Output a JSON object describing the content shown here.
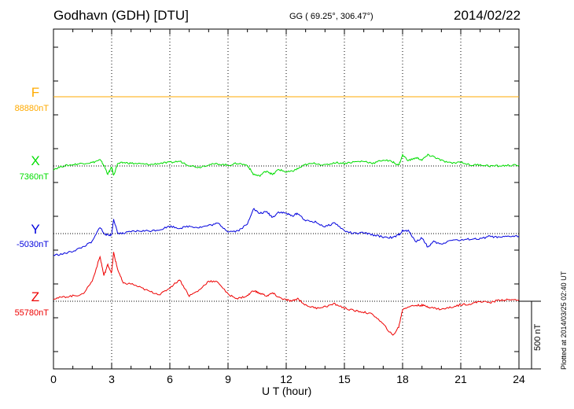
{
  "header": {
    "title": "Godhavn (GDH)  [DTU]",
    "coordinates": "GG ( 69.25°, 306.47°)",
    "date": "2014/02/22"
  },
  "footer": {
    "plotted": "Plotted at 2014/03/25 02:40 UT"
  },
  "chart_data": {
    "type": "line",
    "title": "Godhavn (GDH)  [DTU]",
    "xlabel": "U T (hour)",
    "xlim": [
      0,
      24
    ],
    "xticks": [
      0,
      3,
      6,
      9,
      12,
      15,
      18,
      21,
      24
    ],
    "x_tick_labels": [
      "0",
      "3",
      "6",
      "9",
      "12",
      "15",
      "18",
      "21",
      "24"
    ],
    "scale_bar": {
      "label": "500 nT",
      "value": 500
    },
    "grid": "dotted vertical every 3 hours",
    "series": [
      {
        "name": "F",
        "baseline_label": "88880nT",
        "baseline": 88880,
        "color": "#ffaa00",
        "x": [
          0,
          24
        ],
        "values": [
          0,
          0
        ]
      },
      {
        "name": "X",
        "baseline_label": "7360nT",
        "baseline": 7360,
        "color": "#00dd00",
        "x": [
          0,
          0.5,
          1,
          1.5,
          2,
          2.4,
          2.6,
          2.8,
          3.0,
          3.1,
          3.3,
          3.6,
          4,
          4.5,
          5,
          5.5,
          6,
          6.5,
          7,
          7.5,
          8,
          8.5,
          9,
          9.5,
          10,
          10.3,
          10.6,
          11,
          11.3,
          11.6,
          12,
          12.3,
          12.6,
          13,
          13.5,
          14,
          14.5,
          15,
          15.5,
          16,
          16.5,
          17,
          17.5,
          17.8,
          18,
          18.3,
          18.7,
          19,
          19.3,
          19.6,
          20,
          20.5,
          21,
          21.5,
          22,
          22.5,
          23,
          23.5,
          24
        ],
        "values": [
          -25,
          0,
          10,
          20,
          25,
          45,
          5,
          -60,
          -10,
          -70,
          15,
          25,
          20,
          15,
          10,
          20,
          25,
          35,
          5,
          -10,
          10,
          15,
          5,
          20,
          5,
          -60,
          -75,
          -35,
          -65,
          -25,
          -45,
          -40,
          -20,
          10,
          20,
          5,
          25,
          20,
          30,
          35,
          20,
          45,
          30,
          5,
          80,
          40,
          60,
          45,
          80,
          70,
          40,
          20,
          30,
          5,
          10,
          0,
          0,
          5,
          5
        ]
      },
      {
        "name": "Y",
        "baseline_label": "-5030nT",
        "baseline": -5030,
        "color": "#0000dd",
        "x": [
          0,
          0.5,
          1,
          1.5,
          2,
          2.4,
          2.6,
          2.8,
          3.0,
          3.1,
          3.3,
          3.6,
          4,
          4.5,
          5,
          5.5,
          6,
          6.5,
          7,
          7.5,
          8,
          8.5,
          9,
          9.5,
          10,
          10.3,
          10.6,
          11,
          11.3,
          11.6,
          12,
          12.3,
          12.6,
          13,
          13.5,
          14,
          14.5,
          15,
          15.5,
          16,
          16.5,
          17,
          17.5,
          17.8,
          18,
          18.3,
          18.7,
          19,
          19.3,
          19.6,
          20,
          20.5,
          21,
          21.5,
          22,
          22.5,
          23,
          23.5,
          24
        ],
        "values": [
          -160,
          -150,
          -130,
          -100,
          -60,
          50,
          0,
          -10,
          -10,
          110,
          5,
          0,
          15,
          20,
          20,
          30,
          55,
          40,
          55,
          45,
          60,
          75,
          15,
          20,
          70,
          185,
          150,
          160,
          120,
          160,
          150,
          130,
          150,
          95,
          85,
          50,
          80,
          20,
          0,
          5,
          -10,
          -25,
          -30,
          -10,
          20,
          20,
          -60,
          -30,
          -100,
          -60,
          -80,
          -45,
          -50,
          -40,
          -40,
          -20,
          -30,
          -20,
          -20
        ]
      },
      {
        "name": "Z",
        "baseline_label": "55780nT",
        "baseline": 55780,
        "color": "#ee0000",
        "x": [
          0,
          0.5,
          1,
          1.5,
          2,
          2.4,
          2.6,
          2.8,
          3.0,
          3.1,
          3.3,
          3.6,
          4,
          4.5,
          5,
          5.5,
          6,
          6.5,
          7,
          7.5,
          8,
          8.5,
          9,
          9.5,
          10,
          10.3,
          10.6,
          11,
          11.3,
          11.6,
          12,
          12.3,
          12.6,
          13,
          13.5,
          14,
          14.5,
          15,
          15.5,
          16,
          16.5,
          17,
          17.5,
          17.8,
          18,
          18.3,
          18.7,
          19,
          19.3,
          19.6,
          20,
          20.5,
          21,
          21.5,
          22,
          22.5,
          23,
          23.5,
          24
        ],
        "values": [
          20,
          30,
          40,
          50,
          150,
          330,
          190,
          270,
          210,
          360,
          240,
          130,
          130,
          100,
          70,
          50,
          100,
          160,
          40,
          80,
          150,
          140,
          50,
          20,
          40,
          80,
          60,
          40,
          60,
          30,
          10,
          0,
          20,
          -30,
          -50,
          -40,
          -20,
          -50,
          -70,
          -80,
          -100,
          -170,
          -255,
          -190,
          -60,
          -40,
          -30,
          -30,
          -40,
          -50,
          -60,
          -45,
          -25,
          -20,
          0,
          -10,
          10,
          10,
          10
        ]
      }
    ]
  }
}
